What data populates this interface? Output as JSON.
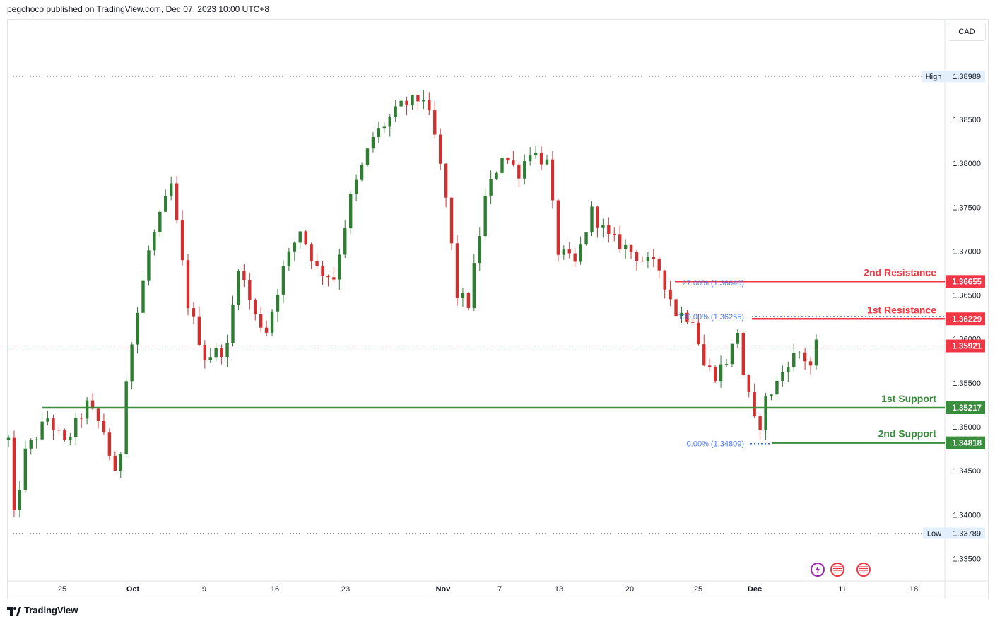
{
  "header": {
    "published": "pegchoco published on TradingView.com, Dec 07, 2023 10:00 UTC+8"
  },
  "footer": {
    "brand": "TradingView"
  },
  "currency_button": "CAD",
  "colors": {
    "up": "#26a69a",
    "upBody": "#2e7d32",
    "down": "#ef5350",
    "downBody": "#d32f2f",
    "resistance": "#f23645",
    "support": "#388e3c",
    "fib": "#2962ff",
    "axisText": "#131722"
  },
  "chart_data": {
    "type": "candlestick",
    "symbol_currency": "CAD",
    "ylim": [
      1.332,
      1.392
    ],
    "y_ticks": [
      "1.33500",
      "1.34000",
      "1.34500",
      "1.35000",
      "1.35500",
      "1.36000",
      "1.36500",
      "1.37000",
      "1.37500",
      "1.38000",
      "1.38500"
    ],
    "x_ticks": [
      "25",
      "Oct",
      "9",
      "16",
      "23",
      "Nov",
      "7",
      "13",
      "20",
      "25",
      "Dec",
      "11",
      "18"
    ],
    "high": {
      "label": "High",
      "value": "1.38989"
    },
    "low": {
      "label": "Low",
      "value": "1.33789"
    },
    "last_price": "1.35921",
    "levels": [
      {
        "name": "2nd Resistance",
        "value": 1.36655,
        "value_label": "1.36655",
        "kind": "resistance"
      },
      {
        "name": "1st Resistance",
        "value": 1.36229,
        "value_label": "1.36229",
        "kind": "resistance"
      },
      {
        "name": "1st Support",
        "value": 1.35217,
        "value_label": "1.35217",
        "kind": "support"
      },
      {
        "name": "2nd Support",
        "value": 1.34818,
        "value_label": "1.34818",
        "kind": "support"
      }
    ],
    "fib_labels": [
      {
        "text": "27.00% (1.36640)",
        "value": 1.3664
      },
      {
        "text": "100.00% (1.36255)",
        "value": 1.36255
      },
      {
        "text": "0.00% (1.34809)",
        "value": 1.34809
      }
    ],
    "anchors": [
      {
        "t": 0.0,
        "p": 1.3485
      },
      {
        "t": 0.8,
        "p": 1.339
      },
      {
        "t": 3.0,
        "p": 1.347
      },
      {
        "t": 7.0,
        "p": 1.351
      },
      {
        "t": 10.0,
        "p": 1.348
      },
      {
        "t": 14.0,
        "p": 1.3525
      },
      {
        "t": 17.0,
        "p": 1.3495
      },
      {
        "t": 19.5,
        "p": 1.343
      },
      {
        "t": 21.0,
        "p": 1.356
      },
      {
        "t": 25.0,
        "p": 1.37
      },
      {
        "t": 29.0,
        "p": 1.3775
      },
      {
        "t": 32.0,
        "p": 1.364
      },
      {
        "t": 35.0,
        "p": 1.358
      },
      {
        "t": 39.0,
        "p": 1.359
      },
      {
        "t": 41.0,
        "p": 1.3685
      },
      {
        "t": 44.0,
        "p": 1.3625
      },
      {
        "t": 46.0,
        "p": 1.361
      },
      {
        "t": 49.0,
        "p": 1.368
      },
      {
        "t": 52.0,
        "p": 1.3725
      },
      {
        "t": 55.0,
        "p": 1.368
      },
      {
        "t": 58.0,
        "p": 1.367
      },
      {
        "t": 61.0,
        "p": 1.376
      },
      {
        "t": 65.0,
        "p": 1.383
      },
      {
        "t": 70.0,
        "p": 1.3865
      },
      {
        "t": 74.0,
        "p": 1.3875
      },
      {
        "t": 76.0,
        "p": 1.383
      },
      {
        "t": 78.0,
        "p": 1.376
      },
      {
        "t": 80.0,
        "p": 1.365
      },
      {
        "t": 82.0,
        "p": 1.364
      },
      {
        "t": 85.0,
        "p": 1.376
      },
      {
        "t": 88.0,
        "p": 1.381
      },
      {
        "t": 91.0,
        "p": 1.379
      },
      {
        "t": 93.0,
        "p": 1.3815
      },
      {
        "t": 96.0,
        "p": 1.38
      },
      {
        "t": 98.0,
        "p": 1.37
      },
      {
        "t": 101.0,
        "p": 1.3685
      },
      {
        "t": 104.0,
        "p": 1.3745
      },
      {
        "t": 107.0,
        "p": 1.3715
      },
      {
        "t": 110.0,
        "p": 1.3705
      },
      {
        "t": 113.0,
        "p": 1.369
      },
      {
        "t": 116.0,
        "p": 1.368
      },
      {
        "t": 119.0,
        "p": 1.363
      },
      {
        "t": 122.0,
        "p": 1.3625
      },
      {
        "t": 124.0,
        "p": 1.357
      },
      {
        "t": 126.0,
        "p": 1.356
      },
      {
        "t": 128.5,
        "p": 1.358
      },
      {
        "t": 130.0,
        "p": 1.361
      },
      {
        "t": 131.0,
        "p": 1.356
      },
      {
        "t": 132.5,
        "p": 1.352
      },
      {
        "t": 133.5,
        "p": 1.349
      },
      {
        "t": 135.0,
        "p": 1.353
      },
      {
        "t": 137.0,
        "p": 1.355
      },
      {
        "t": 139.0,
        "p": 1.3575
      },
      {
        "t": 141.0,
        "p": 1.3585
      },
      {
        "t": 143.0,
        "p": 1.357
      },
      {
        "t": 144.0,
        "p": 1.3592
      }
    ],
    "total_bars": 144
  }
}
